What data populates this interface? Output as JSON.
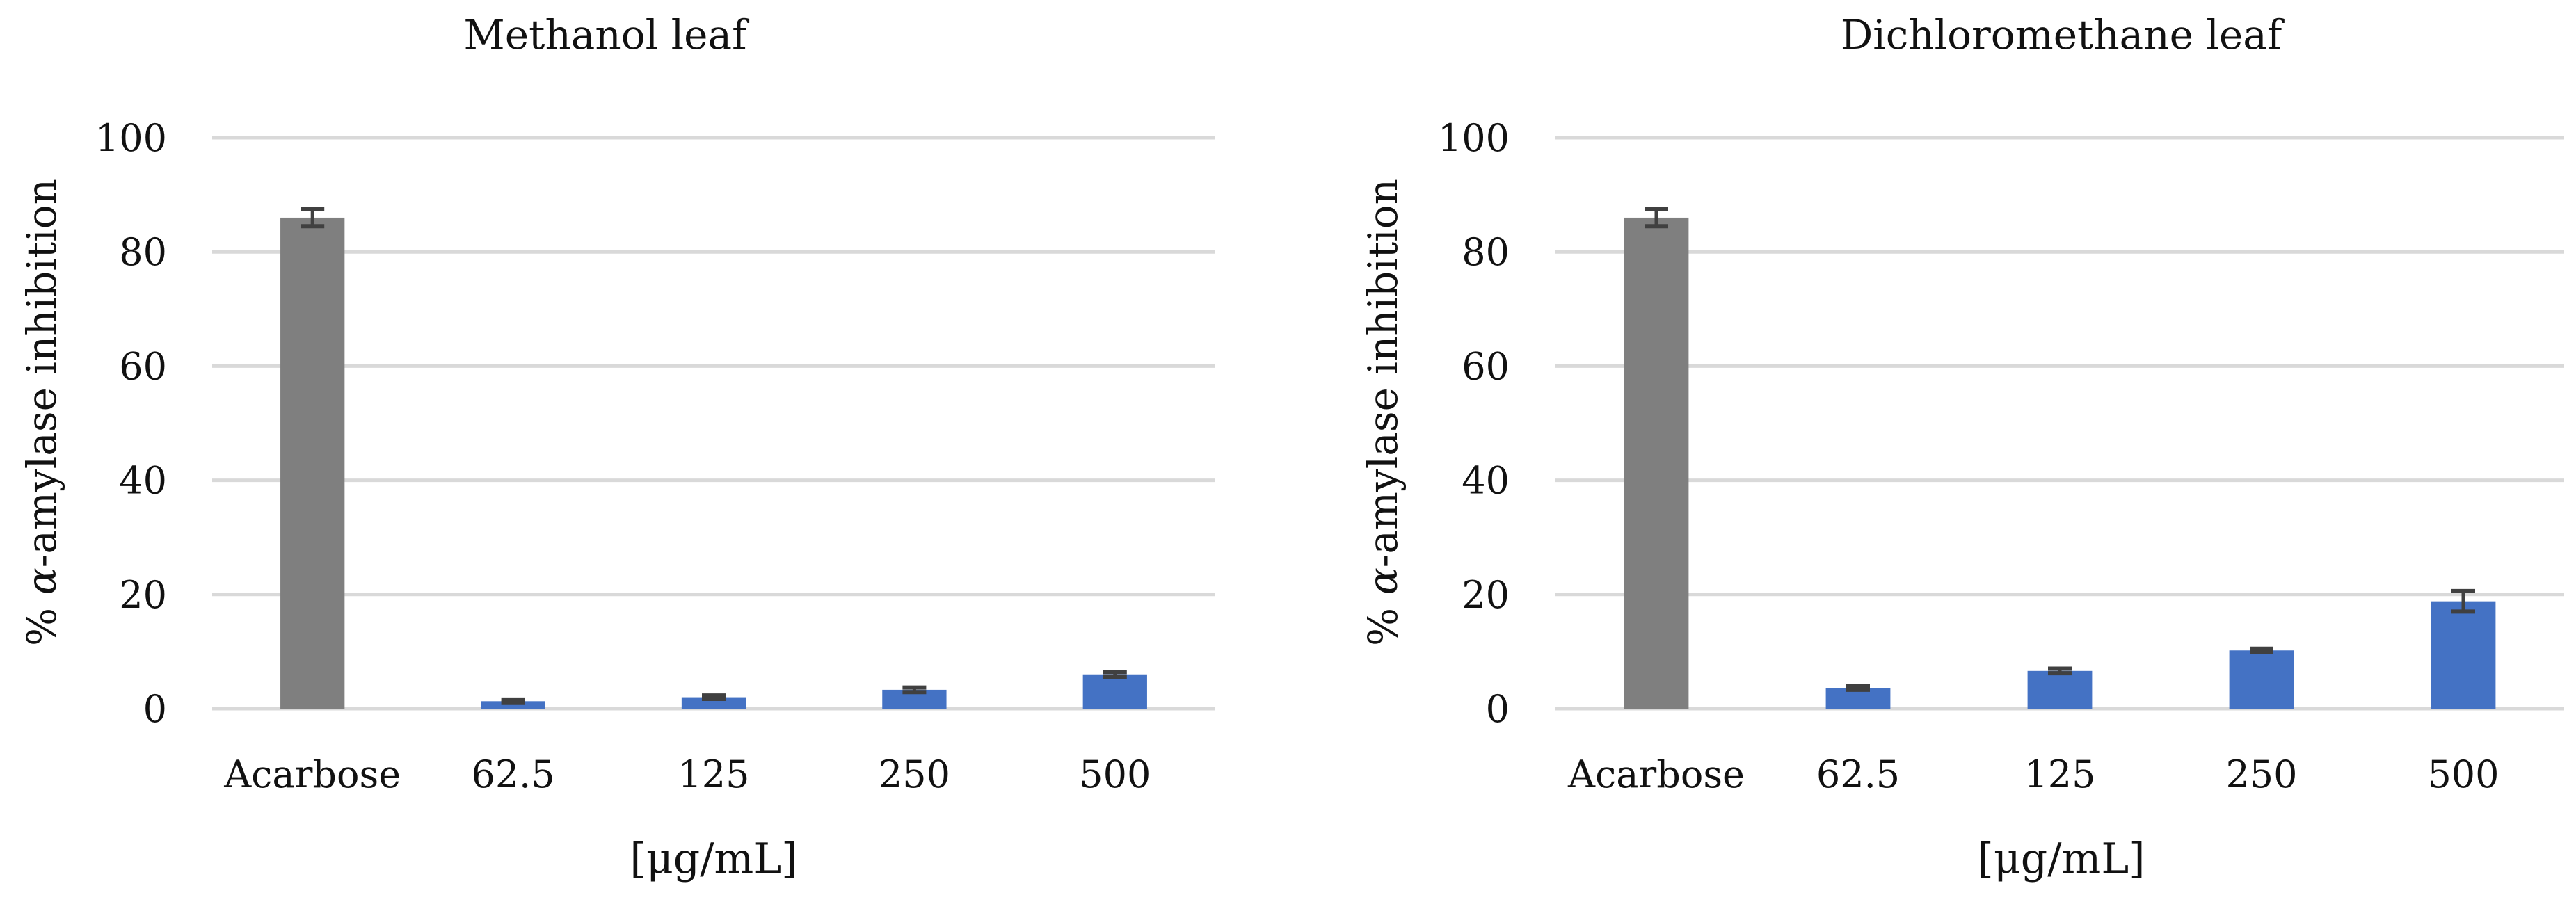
{
  "colors": {
    "control_bar": "#7f7f7f",
    "extract_bar": "#4472c4",
    "gridline": "#d9d9d9",
    "error_bar": "#404040"
  },
  "chart_data": [
    {
      "type": "bar",
      "title": "Methanol leaf",
      "xlabel": "[μg/mL]",
      "ylabel_prefix": "% ",
      "ylabel_greek": "α",
      "ylabel_suffix": "-amylase inhibition",
      "ylim": [
        0,
        100
      ],
      "yticks": [
        0,
        20,
        40,
        60,
        80,
        100
      ],
      "grid": true,
      "categories": [
        "Acarbose",
        "62.5",
        "125",
        "250",
        "500"
      ],
      "values": [
        86.0,
        1.3,
        2.0,
        3.3,
        6.0
      ],
      "errors": [
        1.5,
        0.3,
        0.3,
        0.4,
        0.4
      ]
    },
    {
      "type": "bar",
      "title": "Dichloromethane leaf",
      "xlabel": "[μg/mL]",
      "ylabel_prefix": "% ",
      "ylabel_greek": "α",
      "ylabel_suffix": "-amylase inhibition",
      "ylim": [
        0,
        100
      ],
      "yticks": [
        0,
        20,
        40,
        60,
        80,
        100
      ],
      "grid": true,
      "categories": [
        "Acarbose",
        "62.5",
        "125",
        "250",
        "500"
      ],
      "values": [
        86.0,
        3.6,
        6.6,
        10.2,
        18.8
      ],
      "errors": [
        1.5,
        0.3,
        0.4,
        0.3,
        1.8
      ]
    }
  ]
}
